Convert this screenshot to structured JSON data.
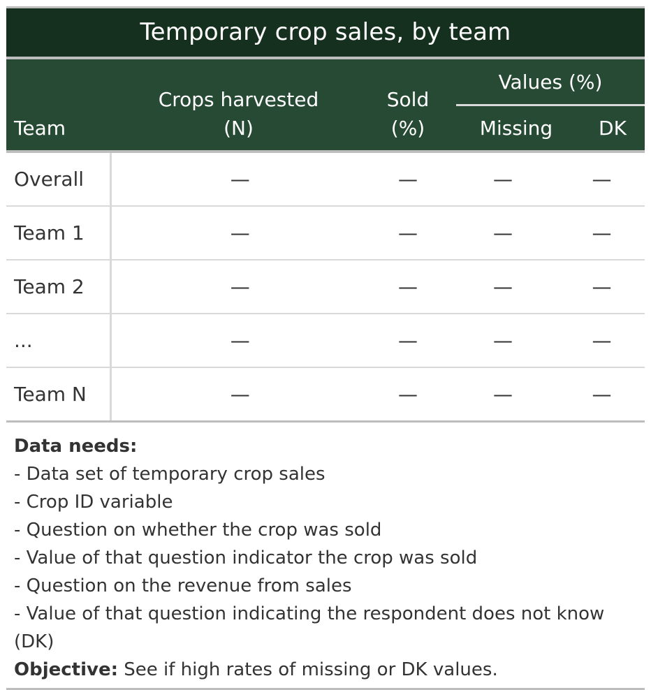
{
  "title": "Temporary crop sales, by team",
  "columns": {
    "team": "Team",
    "crops_line1": "Crops harvested",
    "crops_line2": "(N)",
    "sold_line1": "Sold",
    "sold_line2": "(%)",
    "values_spanner": "Values (%)",
    "missing": "Missing",
    "dk": "DK"
  },
  "rows": [
    {
      "team": "Overall",
      "crops": "—",
      "sold": "—",
      "missing": "—",
      "dk": "—"
    },
    {
      "team": "Team 1",
      "crops": "—",
      "sold": "—",
      "missing": "—",
      "dk": "—"
    },
    {
      "team": "Team 2",
      "crops": "—",
      "sold": "—",
      "missing": "—",
      "dk": "—"
    },
    {
      "team": "...",
      "crops": "—",
      "sold": "—",
      "missing": "—",
      "dk": "—"
    },
    {
      "team": "Team N",
      "crops": "—",
      "sold": "—",
      "missing": "—",
      "dk": "—"
    }
  ],
  "notes": {
    "data_needs_label": "Data needs:",
    "items": [
      "- Data set of temporary crop sales",
      "- Crop ID variable",
      "- Question on whether the crop was sold",
      "- Value of that question indicator the crop was sold",
      "- Question on the revenue from sales",
      "- Value of that question indicating the respondent does not know (DK)"
    ],
    "objective_label": "Objective:",
    "objective_text": " See if high rates of missing or DK values."
  },
  "colors": {
    "title_bg": "#16301f",
    "header_bg": "#264a34",
    "rule": "#d9d9d9"
  }
}
